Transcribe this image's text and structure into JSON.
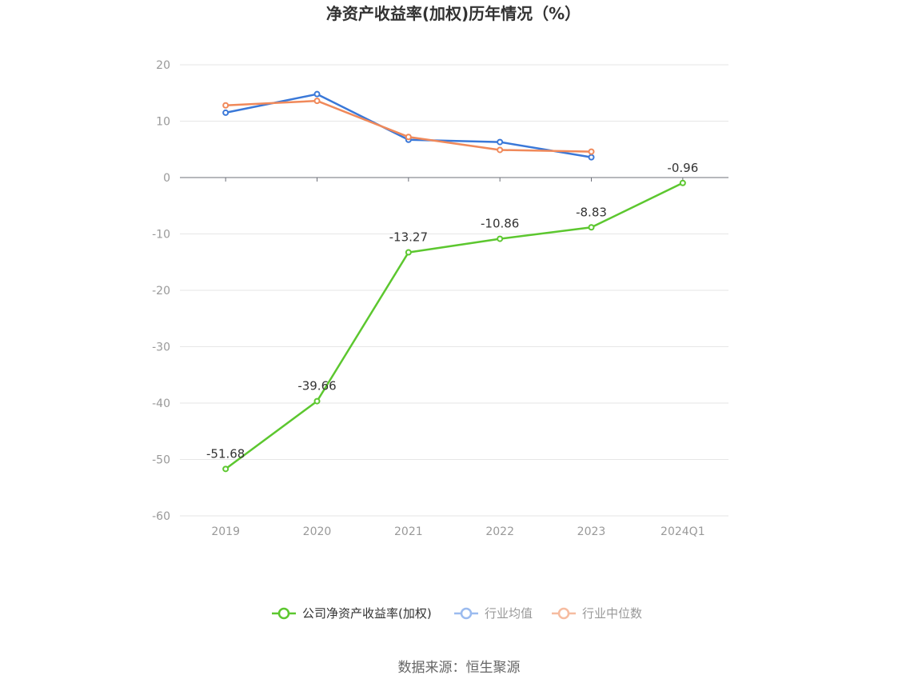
{
  "chart_data": {
    "type": "line",
    "title": "净资产收益率(加权)历年情况（%）",
    "categories": [
      "2019",
      "2020",
      "2021",
      "2022",
      "2023",
      "2024Q1"
    ],
    "ylim": [
      -60,
      20
    ],
    "yticks": [
      20,
      10,
      0,
      -10,
      -20,
      -30,
      -40,
      -50,
      -60
    ],
    "grid": true,
    "legend_position": "bottom-center",
    "series": [
      {
        "name": "公司净资产收益率(加权)",
        "color": "#5cc72f",
        "values": [
          -51.68,
          -39.66,
          -13.27,
          -10.86,
          -8.83,
          -0.96
        ],
        "labels": [
          "-51.68",
          "-39.66",
          "-13.27",
          "-10.86",
          "-8.83",
          "-0.96"
        ]
      },
      {
        "name": "行业均值",
        "color": "#3a78d8",
        "legend_color": "#9bbbef",
        "values": [
          11.5,
          14.8,
          6.7,
          6.3,
          3.6,
          null
        ]
      },
      {
        "name": "行业中位数",
        "color": "#f0895a",
        "legend_color": "#f6bca0",
        "values": [
          12.8,
          13.6,
          7.2,
          4.9,
          4.6,
          null
        ]
      }
    ]
  },
  "source": "数据来源：恒生聚源"
}
